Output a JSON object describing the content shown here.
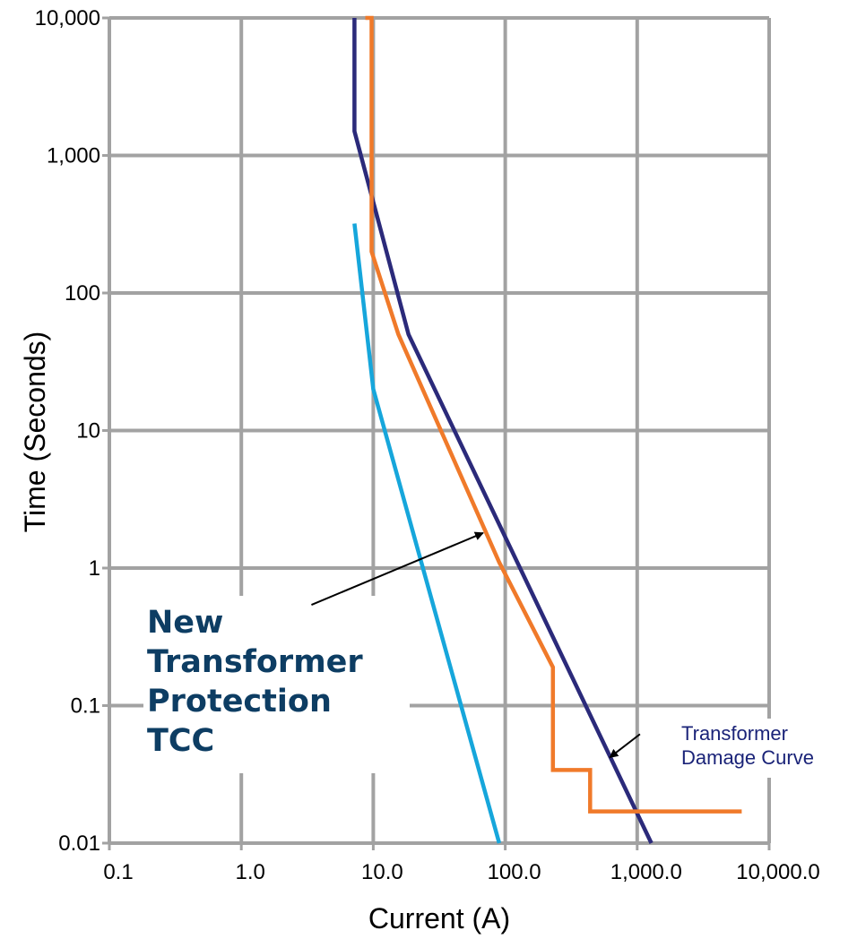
{
  "chart_data": {
    "type": "line",
    "title": "",
    "xlabel": "Current (A)",
    "ylabel": "Time (Seconds)",
    "x_scale": "log",
    "y_scale": "log",
    "xlim": [
      0.1,
      10000
    ],
    "ylim": [
      0.01,
      10000
    ],
    "grid": true,
    "x_ticks": [
      {
        "value": 0.1,
        "label": "0.1"
      },
      {
        "value": 1,
        "label": "1.0"
      },
      {
        "value": 10,
        "label": "10.0"
      },
      {
        "value": 100,
        "label": "100.0"
      },
      {
        "value": 1000,
        "label": "1,000.0"
      },
      {
        "value": 10000,
        "label": "10,000.0"
      }
    ],
    "y_ticks": [
      {
        "value": 0.01,
        "label": "0.01"
      },
      {
        "value": 0.1,
        "label": "0.1"
      },
      {
        "value": 1,
        "label": "1"
      },
      {
        "value": 10,
        "label": "10"
      },
      {
        "value": 100,
        "label": "100"
      },
      {
        "value": 1000,
        "label": "1,000"
      },
      {
        "value": 10000,
        "label": "10,000"
      }
    ],
    "series": [
      {
        "color": "#2b2a7a",
        "points": [
          [
            7.2,
            10000
          ],
          [
            7.2,
            1500
          ],
          [
            18.5,
            50
          ],
          [
            1280,
            0.01
          ]
        ]
      },
      {
        "color": "#f07a2a",
        "points": [
          [
            8.7,
            10000
          ],
          [
            9.7,
            10000
          ],
          [
            9.7,
            200
          ],
          [
            15.5,
            50
          ],
          [
            90,
            1.1
          ],
          [
            230,
            0.19
          ],
          [
            230,
            0.034
          ],
          [
            440,
            0.034
          ],
          [
            440,
            0.017
          ],
          [
            6200,
            0.017
          ]
        ]
      },
      {
        "color": "#16a6db",
        "points": [
          [
            7.2,
            320
          ],
          [
            10,
            20
          ],
          [
            90,
            0.01
          ]
        ]
      }
    ],
    "annotations": [
      {
        "lines": [
          "New",
          "Transformer",
          "Protection",
          "TCC"
        ],
        "arrow_from": [
          3.4,
          0.54
        ],
        "arrow_to": [
          68,
          1.8
        ]
      },
      {
        "lines": [
          "Transformer",
          "Damage Curve"
        ],
        "arrow_from": [
          1050,
          0.062
        ],
        "arrow_to": [
          620,
          0.042
        ]
      }
    ]
  }
}
